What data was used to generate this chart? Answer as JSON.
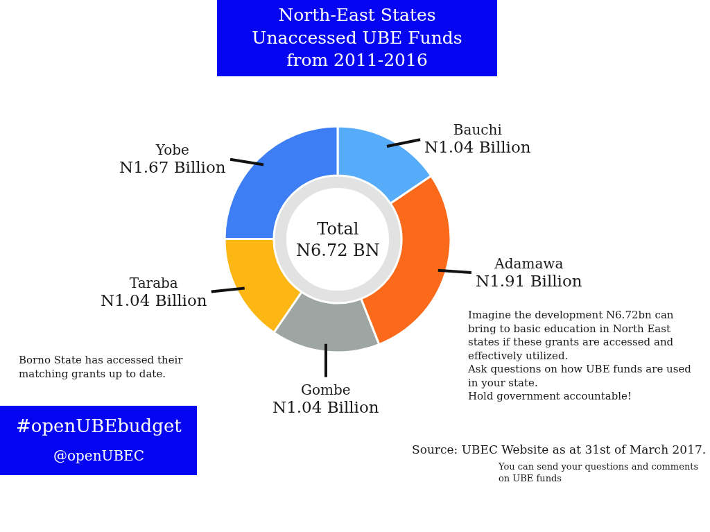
{
  "chart_data": {
    "type": "donut",
    "title": "North-East States\nUnaccessed UBE Funds\nfrom 2011-2016",
    "categories": [
      "Bauchi",
      "Adamawa",
      "Gombe",
      "Taraba",
      "Yobe"
    ],
    "values": [
      1.04,
      1.91,
      1.04,
      1.04,
      1.67
    ],
    "value_labels": [
      "N1.04 Billion",
      "N1.91 Billion",
      "N1.04 Billion",
      "N1.04 Billion",
      "N1.67 Billion"
    ],
    "colors": [
      "#56acf8",
      "#fa6a1a",
      "#9ea6a4",
      "#fdb714",
      "#3e7ef5"
    ],
    "legend": false,
    "annotations": [
      "Total\nN6.72 BN",
      "Imagine the development N6.72bn can\nbring to basic education in North East\nstates if these grants are accessed and\neffectively utilized.\nAsk questions on how UBE funds are used\nin your state.\nHold government accountable!",
      "Source: UBEC Website as at 31st of March 2017.",
      "You can send your questions and comments\non UBE funds",
      "Borno State has accessed their\nmatching grants up to date.",
      "#openUBEbudget",
      "@openUBEC"
    ]
  }
}
